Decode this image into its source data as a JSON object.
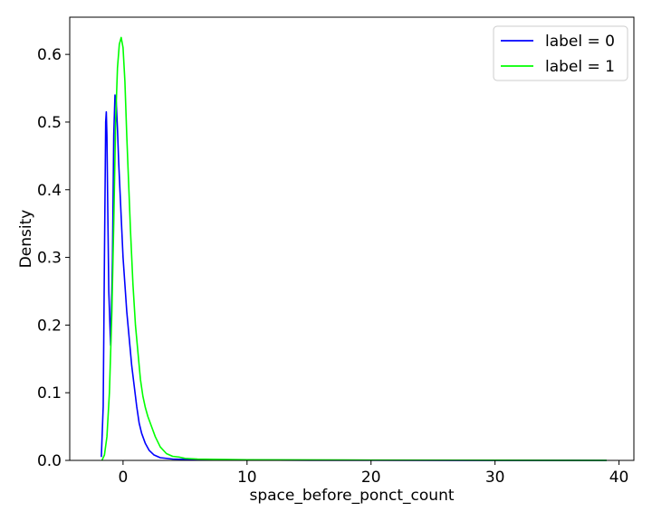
{
  "chart_data": {
    "type": "line",
    "title": "",
    "xlabel": "space_before_ponct_count",
    "ylabel": "Density",
    "xlim": [
      -4.3,
      41.2
    ],
    "ylim": [
      0,
      0.655
    ],
    "xticks": [
      0,
      10,
      20,
      30,
      40
    ],
    "xtick_labels": [
      "0",
      "10",
      "20",
      "30",
      "40"
    ],
    "yticks": [
      0.0,
      0.1,
      0.2,
      0.3,
      0.4,
      0.5,
      0.6
    ],
    "ytick_labels": [
      "0.0",
      "0.1",
      "0.2",
      "0.3",
      "0.4",
      "0.5",
      "0.6"
    ],
    "grid": false,
    "legend_position": "top-right",
    "series": [
      {
        "name": "label = 0",
        "color": "#0000ff",
        "x": [
          -1.75,
          -1.6,
          -1.5,
          -1.4,
          -1.35,
          -1.3,
          -1.25,
          -1.15,
          -1.0,
          -0.85,
          -0.75,
          -0.65,
          -0.55,
          -0.45,
          -0.35,
          -0.25,
          -0.15,
          0.0,
          0.15,
          0.3,
          0.5,
          0.7,
          0.9,
          1.1,
          1.3,
          1.5,
          1.8,
          2.1,
          2.5,
          3.0,
          3.5,
          4.0,
          5.0,
          6.0,
          8.0,
          10.0,
          15.0,
          20.0,
          30.0,
          39.0
        ],
        "y": [
          0.005,
          0.08,
          0.3,
          0.5,
          0.515,
          0.48,
          0.4,
          0.25,
          0.17,
          0.3,
          0.48,
          0.54,
          0.53,
          0.49,
          0.44,
          0.4,
          0.36,
          0.3,
          0.26,
          0.22,
          0.18,
          0.14,
          0.11,
          0.08,
          0.055,
          0.04,
          0.025,
          0.015,
          0.008,
          0.004,
          0.003,
          0.002,
          0.0015,
          0.001,
          0.0008,
          0.0005,
          0.0003,
          0.0002,
          0.0001,
          0.0
        ]
      },
      {
        "name": "label = 1",
        "color": "#00ff00",
        "x": [
          -1.7,
          -1.5,
          -1.3,
          -1.1,
          -0.9,
          -0.75,
          -0.6,
          -0.45,
          -0.3,
          -0.15,
          0.0,
          0.15,
          0.3,
          0.45,
          0.6,
          0.8,
          1.0,
          1.2,
          1.4,
          1.6,
          1.8,
          2.0,
          2.3,
          2.6,
          3.0,
          3.5,
          4.0,
          4.5,
          5.0,
          6.0,
          8.0,
          10.0,
          14.0,
          20.0,
          30.0,
          39.0
        ],
        "y": [
          0.0,
          0.008,
          0.035,
          0.1,
          0.22,
          0.35,
          0.5,
          0.58,
          0.615,
          0.625,
          0.61,
          0.56,
          0.48,
          0.41,
          0.34,
          0.26,
          0.2,
          0.16,
          0.12,
          0.095,
          0.078,
          0.065,
          0.05,
          0.035,
          0.02,
          0.01,
          0.006,
          0.005,
          0.003,
          0.002,
          0.0015,
          0.001,
          0.0008,
          0.0005,
          0.0003,
          0.0001
        ]
      }
    ]
  }
}
